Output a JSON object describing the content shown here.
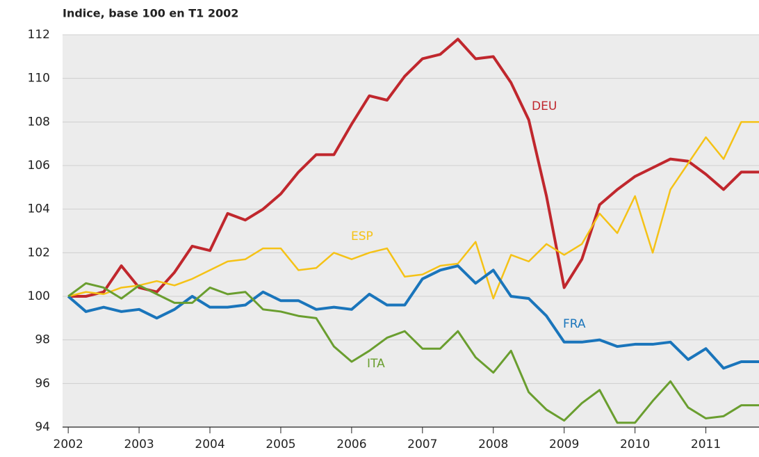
{
  "chart_data": {
    "type": "line",
    "title": "Indice, base 100 en T1 2002",
    "x": [
      2002,
      2002.25,
      2002.5,
      2002.75,
      2003,
      2003.25,
      2003.5,
      2003.75,
      2004,
      2004.25,
      2004.5,
      2004.75,
      2005,
      2005.25,
      2005.5,
      2005.75,
      2006,
      2006.25,
      2006.5,
      2006.75,
      2007,
      2007.25,
      2007.5,
      2007.75,
      2008,
      2008.25,
      2008.5,
      2008.75,
      2009,
      2009.25,
      2009.5,
      2009.75,
      2010,
      2010.25,
      2010.5,
      2010.75,
      2011,
      2011.25,
      2011.5,
      2011.75
    ],
    "series": [
      {
        "name": "DEU",
        "color": "#c0272d",
        "values": [
          100,
          100.0,
          100.2,
          101.4,
          100.4,
          100.2,
          101.1,
          102.3,
          102.1,
          103.8,
          103.5,
          104.0,
          104.7,
          105.7,
          106.5,
          106.5,
          107.9,
          109.2,
          109.0,
          110.1,
          110.9,
          111.1,
          111.8,
          110.9,
          111.0,
          109.8,
          108.1,
          104.6,
          100.4,
          101.7,
          104.2,
          104.9,
          105.5,
          105.9,
          106.3,
          106.2,
          105.6,
          104.9,
          105.7,
          105.7
        ]
      },
      {
        "name": "ESP",
        "color": "#f5c216",
        "values": [
          100,
          100.2,
          100.1,
          100.4,
          100.5,
          100.7,
          100.5,
          100.8,
          101.2,
          101.6,
          101.7,
          102.2,
          102.2,
          101.2,
          101.3,
          102.0,
          101.7,
          102.0,
          102.2,
          100.9,
          101.0,
          101.4,
          101.5,
          102.5,
          99.9,
          101.9,
          101.6,
          102.4,
          101.9,
          102.4,
          103.8,
          102.9,
          104.6,
          102.0,
          104.9,
          106.1,
          107.3,
          106.3,
          108.0,
          108.0
        ]
      },
      {
        "name": "FRA",
        "color": "#1a75bb",
        "values": [
          100,
          99.3,
          99.5,
          99.3,
          99.4,
          99.0,
          99.4,
          100.0,
          99.5,
          99.5,
          99.6,
          100.2,
          99.8,
          99.8,
          99.4,
          99.5,
          99.4,
          100.1,
          99.6,
          99.6,
          100.8,
          101.2,
          101.4,
          100.6,
          101.2,
          100.0,
          99.9,
          99.1,
          97.9,
          97.9,
          98.0,
          97.7,
          97.8,
          97.8,
          97.9,
          97.1,
          97.6,
          96.7,
          97.0,
          97.0
        ]
      },
      {
        "name": "ITA",
        "color": "#6a9e2f",
        "values": [
          100,
          100.6,
          100.4,
          99.9,
          100.5,
          100.1,
          99.7,
          99.7,
          100.4,
          100.1,
          100.2,
          99.4,
          99.3,
          99.1,
          99.0,
          97.7,
          97.0,
          97.5,
          98.1,
          98.4,
          97.6,
          97.6,
          98.4,
          97.2,
          96.5,
          97.5,
          95.6,
          94.8,
          94.3,
          95.1,
          95.7,
          94.2,
          94.2,
          95.2,
          96.1,
          94.9,
          94.4,
          94.5,
          95.0,
          95.0
        ]
      }
    ],
    "xlim": [
      2001.92,
      2011.75
    ],
    "xticks": [
      2002,
      2003,
      2004,
      2005,
      2006,
      2007,
      2008,
      2009,
      2010,
      2011
    ],
    "ylim": [
      94,
      112
    ],
    "yticks": [
      94,
      96,
      98,
      100,
      102,
      104,
      106,
      108,
      110,
      112
    ],
    "grid": true
  }
}
